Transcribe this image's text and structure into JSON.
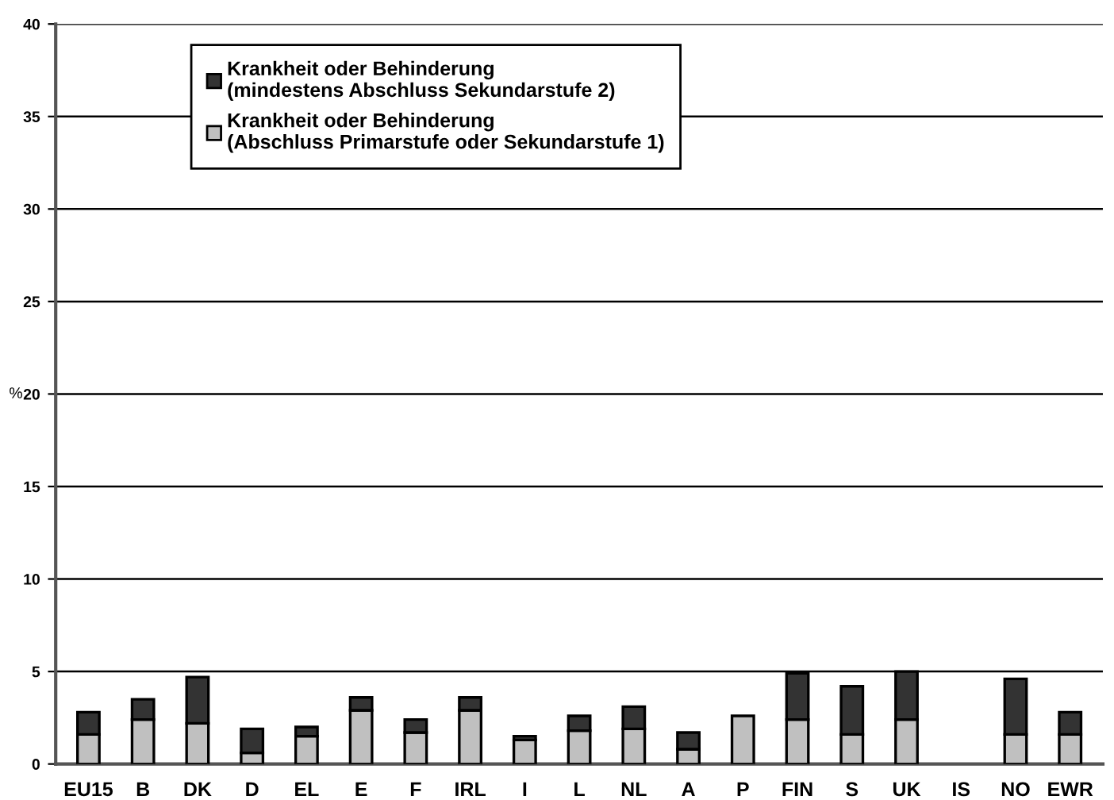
{
  "chart_data": {
    "type": "bar",
    "stacked": true,
    "ylabel": "%",
    "categories": [
      "EU15",
      "B",
      "DK",
      "D",
      "EL",
      "E",
      "F",
      "IRL",
      "I",
      "L",
      "NL",
      "A",
      "P",
      "FIN",
      "S",
      "UK",
      "IS",
      "NO",
      "EWR"
    ],
    "series": [
      {
        "name": "Krankheit oder Behinderung\n(Abschluss Primarstufe oder Sekundarstufe 1)",
        "color": "#c0c0c0",
        "values": [
          1.6,
          2.4,
          2.2,
          0.6,
          1.5,
          2.9,
          1.7,
          2.9,
          1.3,
          1.8,
          1.9,
          0.8,
          2.6,
          2.4,
          1.6,
          2.4,
          null,
          1.6,
          1.6
        ]
      },
      {
        "name": "Krankheit oder Behinderung\n(mindestens Abschluss Sekundarstufe 2)",
        "color": "#333333",
        "values": [
          1.2,
          1.1,
          2.5,
          1.3,
          0.5,
          0.7,
          0.7,
          0.7,
          0.2,
          0.8,
          1.2,
          0.9,
          null,
          2.5,
          2.6,
          2.6,
          null,
          3.0,
          1.2
        ]
      }
    ],
    "ylim": [
      0,
      40
    ],
    "yticks": [
      0,
      5,
      10,
      15,
      20,
      25,
      30,
      35,
      40
    ],
    "grid": "y",
    "legend": "top left"
  }
}
